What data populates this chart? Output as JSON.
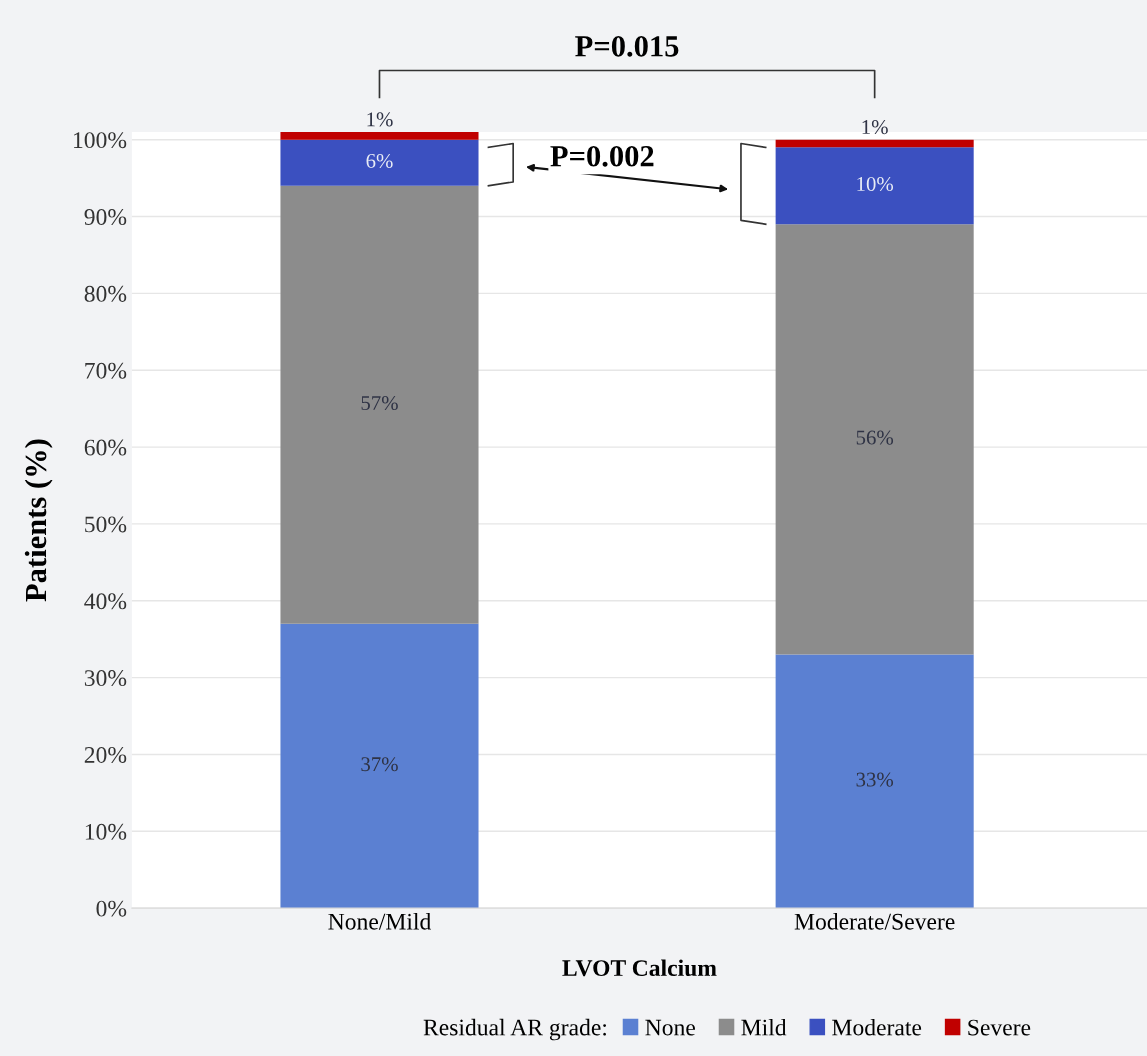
{
  "chart_data": {
    "type": "bar",
    "stacked": true,
    "xlabel": "LVOT Calcium",
    "ylabel": "Patients (%)",
    "categories": [
      "None/Mild",
      "Moderate/Severe"
    ],
    "series": [
      {
        "name": "None",
        "color": "#5b80d2",
        "values": [
          37,
          33
        ],
        "value_labels": [
          "37%",
          "33%"
        ]
      },
      {
        "name": "Mild",
        "color": "#8c8c8c",
        "values": [
          57,
          56
        ],
        "value_labels": [
          "57%",
          "56%"
        ]
      },
      {
        "name": "Moderate",
        "color": "#3b50c0",
        "values": [
          6,
          10
        ],
        "value_labels": [
          "6%",
          "10%"
        ]
      },
      {
        "name": "Severe",
        "color": "#c00000",
        "values": [
          1,
          1
        ],
        "value_labels": [
          "1%",
          "1%"
        ]
      }
    ],
    "legend_title": "Residual AR grade:",
    "legend": "bottom",
    "grid": "y",
    "ylim": [
      0,
      101
    ],
    "yticks": [
      {
        "value": 0,
        "label": "0%"
      },
      {
        "value": 10,
        "label": "10%"
      },
      {
        "value": 20,
        "label": "20%"
      },
      {
        "value": 30,
        "label": "30%"
      },
      {
        "value": 40,
        "label": "40%"
      },
      {
        "value": 50,
        "label": "50%"
      },
      {
        "value": 60,
        "label": "60%"
      },
      {
        "value": 70,
        "label": "70%"
      },
      {
        "value": 80,
        "label": "80%"
      },
      {
        "value": 90,
        "label": "90%"
      },
      {
        "value": 100,
        "label": "100%"
      }
    ],
    "annotations": [
      "P=0.015",
      "P=0.002"
    ]
  }
}
